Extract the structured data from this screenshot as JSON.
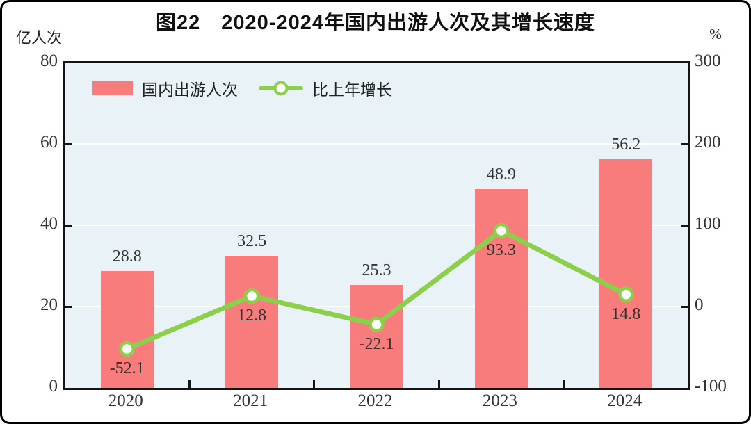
{
  "chart_data": {
    "type": "bar",
    "combo": "bar+line",
    "title": "图22　2020-2024年国内出游人次及其增长速度",
    "categories": [
      "2020",
      "2021",
      "2022",
      "2023",
      "2024"
    ],
    "series": [
      {
        "name": "国内出游人次",
        "type": "bar",
        "axis": "left",
        "color": "#f97c7c",
        "values": [
          28.8,
          32.5,
          25.3,
          48.9,
          56.2
        ],
        "labels": [
          "28.8",
          "32.5",
          "25.3",
          "48.9",
          "56.2"
        ]
      },
      {
        "name": "比上年增长",
        "type": "line",
        "axis": "right",
        "color": "#8ccf4b",
        "marker": "open-circle",
        "values": [
          -52.1,
          12.8,
          -22.1,
          93.3,
          14.8
        ],
        "labels": [
          "-52.1",
          "12.8",
          "-22.1",
          "93.3",
          "14.8"
        ]
      }
    ],
    "left_axis": {
      "unit": "亿人次",
      "min": 0,
      "max": 80,
      "ticks": [
        0,
        20,
        40,
        60,
        80
      ]
    },
    "right_axis": {
      "unit": "%",
      "min": -100,
      "max": 300,
      "ticks": [
        -100,
        0,
        100,
        200,
        300
      ]
    },
    "legend_position": "top-left-inside",
    "grid": true,
    "plot_bg": "#e9f2f6",
    "gridline_color": "#ffffff"
  }
}
